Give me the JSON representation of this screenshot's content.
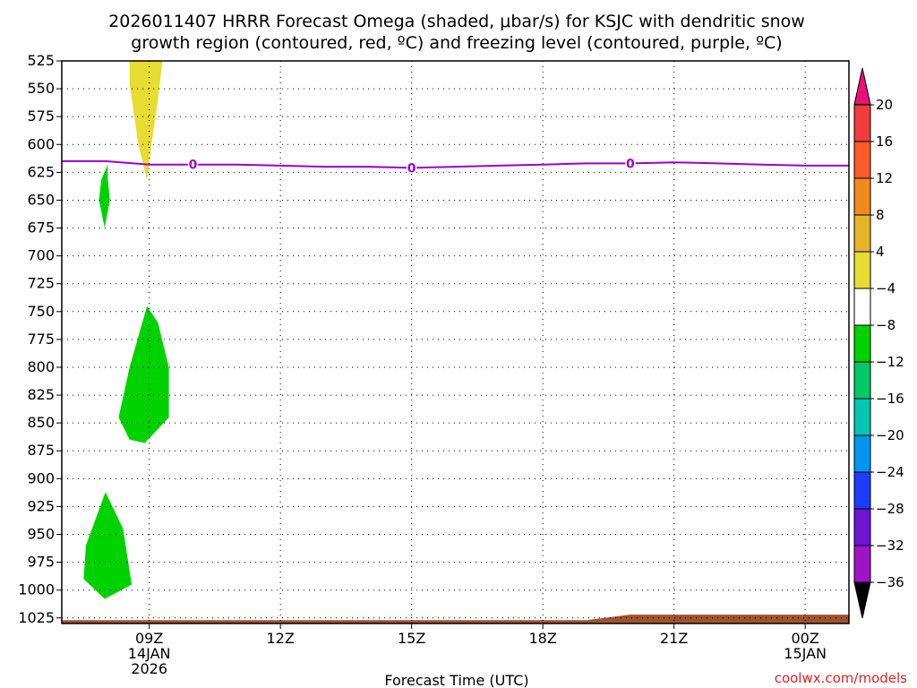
{
  "title": {
    "line1": "2026011407 HRRR Forecast Omega (shaded, μbar/s) for KSJC with dendritic snow",
    "line2": "growth region (contoured, red, ºC) and freezing level (contoured, purple, ºC)"
  },
  "xlabel": "Forecast Time (UTC)",
  "credit": "coolwx.com/models",
  "chart_data": {
    "type": "heatmap",
    "title": "2026011407 HRRR Forecast Omega (shaded, μbar/s) for KSJC with dendritic snow growth region (contoured, red, ºC) and freezing level (contoured, purple, ºC)",
    "xlabel": "Forecast Time (UTC)",
    "ylabel": "",
    "x_units": "forecast hour (0 = 2026-01-14 07Z)",
    "xlim": [
      0,
      18
    ],
    "ylim": [
      1030,
      525
    ],
    "y_scale": "pressure (hPa), increasing downward",
    "grid": true,
    "x_ticks": [
      {
        "h": 2,
        "label": "09Z",
        "date1": "14JAN",
        "date2": "2026"
      },
      {
        "h": 5,
        "label": "12Z"
      },
      {
        "h": 8,
        "label": "15Z"
      },
      {
        "h": 11,
        "label": "18Z"
      },
      {
        "h": 14,
        "label": "21Z"
      },
      {
        "h": 17,
        "label": "00Z",
        "date1": "15JAN"
      }
    ],
    "y_ticks": [
      525,
      550,
      575,
      600,
      625,
      650,
      675,
      700,
      725,
      750,
      775,
      800,
      825,
      850,
      875,
      900,
      925,
      950,
      975,
      1000,
      1025
    ],
    "colorbar": {
      "labels": [
        "20",
        "16",
        "12",
        "8",
        "4",
        "−4",
        "−8",
        "−12",
        "−16",
        "−20",
        "−24",
        "−28",
        "−32",
        "−36"
      ],
      "colors_top_to_bottom": [
        "#e8107a",
        "#f03c3c",
        "#ff5a28",
        "#f08c1e",
        "#e6b428",
        "#e6dc32",
        "#ffffff",
        "#00d200",
        "#00c864",
        "#00c8b4",
        "#0096f0",
        "#1e3cff",
        "#6e14d2",
        "#a014c8",
        "#aaaaaa",
        "#000000"
      ]
    },
    "omega_regions": [
      {
        "value_class": "4 to 8",
        "color": "#e6dc32",
        "points": [
          [
            1.55,
            525
          ],
          [
            2.3,
            525
          ],
          [
            2.2,
            560
          ],
          [
            2.05,
            600
          ],
          [
            1.95,
            632
          ],
          [
            1.75,
            600
          ],
          [
            1.55,
            545
          ]
        ]
      },
      {
        "value_class": "-8 to -4",
        "color": "#00d200",
        "points": [
          [
            1.05,
            618
          ],
          [
            0.9,
            632
          ],
          [
            0.85,
            650
          ],
          [
            0.98,
            675
          ],
          [
            1.1,
            650
          ],
          [
            1.05,
            630
          ]
        ]
      },
      {
        "value_class": "-8 to -4",
        "color": "#00d200",
        "points": [
          [
            1.95,
            745
          ],
          [
            1.55,
            800
          ],
          [
            1.3,
            845
          ],
          [
            1.55,
            865
          ],
          [
            1.9,
            868
          ],
          [
            2.45,
            845
          ],
          [
            2.45,
            800
          ],
          [
            2.2,
            760
          ]
        ]
      },
      {
        "value_class": "-8 to -4",
        "color": "#00d200",
        "points": [
          [
            1.0,
            912
          ],
          [
            0.55,
            960
          ],
          [
            0.5,
            990
          ],
          [
            0.98,
            1008
          ],
          [
            1.6,
            995
          ],
          [
            1.4,
            945
          ]
        ]
      }
    ],
    "freezing_level": {
      "label": "0",
      "color": "#9b00d2",
      "x": [
        0,
        1,
        2,
        3,
        4,
        5,
        6,
        7,
        8,
        9,
        10,
        11,
        12,
        13,
        14,
        15,
        16,
        17,
        18
      ],
      "y": [
        615,
        615,
        618,
        618,
        618,
        619,
        620,
        620,
        621,
        620,
        619,
        618,
        617,
        617,
        616,
        617,
        618,
        619,
        619
      ],
      "label_at_h": [
        3,
        8,
        13
      ]
    },
    "surface": {
      "color": "#a0522d",
      "x": [
        0,
        12,
        13,
        18
      ],
      "pressure": [
        1027,
        1027,
        1022,
        1022
      ]
    }
  }
}
